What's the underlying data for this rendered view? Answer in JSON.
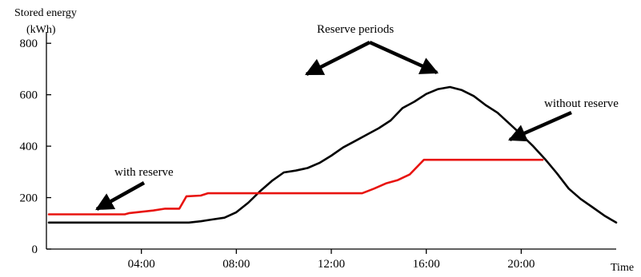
{
  "chart_data": {
    "type": "line",
    "ylabel_line1": "Stored energy",
    "ylabel_line2": "(kWh)",
    "xlabel": "Time",
    "xlim": [
      0,
      24
    ],
    "ylim": [
      0,
      900
    ],
    "x_ticks": [
      {
        "value": 4,
        "label": "04:00"
      },
      {
        "value": 8,
        "label": "08:00"
      },
      {
        "value": 12,
        "label": "12:00"
      },
      {
        "value": 16,
        "label": "16:00"
      },
      {
        "value": 20,
        "label": "20:00"
      }
    ],
    "y_ticks": [
      {
        "value": 0,
        "label": "0"
      },
      {
        "value": 200,
        "label": "200"
      },
      {
        "value": 400,
        "label": "400"
      },
      {
        "value": 600,
        "label": "600"
      },
      {
        "value": 800,
        "label": "800"
      }
    ],
    "grid": false,
    "series": [
      {
        "name": "without reserve",
        "color": "#000000",
        "points": [
          [
            0.1,
            103
          ],
          [
            2,
            103
          ],
          [
            4,
            103
          ],
          [
            6,
            103
          ],
          [
            6.5,
            108
          ],
          [
            7,
            115
          ],
          [
            7.5,
            122
          ],
          [
            8,
            143
          ],
          [
            8.5,
            180
          ],
          [
            9,
            225
          ],
          [
            9.5,
            265
          ],
          [
            10,
            298
          ],
          [
            10.5,
            305
          ],
          [
            11,
            315
          ],
          [
            11.5,
            335
          ],
          [
            12,
            363
          ],
          [
            12.5,
            395
          ],
          [
            13,
            420
          ],
          [
            13.5,
            445
          ],
          [
            14,
            470
          ],
          [
            14.5,
            500
          ],
          [
            15,
            548
          ],
          [
            15.5,
            573
          ],
          [
            16,
            603
          ],
          [
            16.5,
            622
          ],
          [
            17,
            630
          ],
          [
            17.5,
            618
          ],
          [
            18,
            595
          ],
          [
            18.5,
            560
          ],
          [
            19,
            530
          ],
          [
            19.5,
            488
          ],
          [
            20,
            445
          ],
          [
            20.5,
            400
          ],
          [
            21,
            350
          ],
          [
            21.5,
            295
          ],
          [
            22,
            235
          ],
          [
            22.5,
            195
          ],
          [
            23,
            163
          ],
          [
            23.5,
            130
          ],
          [
            24,
            103
          ]
        ]
      },
      {
        "name": "with reserve",
        "color": "#e8130f",
        "points": [
          [
            0.1,
            135
          ],
          [
            2.5,
            135
          ],
          [
            3.3,
            135
          ],
          [
            3.5,
            140
          ],
          [
            4,
            145
          ],
          [
            4.5,
            150
          ],
          [
            5,
            157
          ],
          [
            5.6,
            157
          ],
          [
            5.9,
            205
          ],
          [
            6.5,
            208
          ],
          [
            6.8,
            217
          ],
          [
            8,
            217
          ],
          [
            10,
            217
          ],
          [
            12,
            217
          ],
          [
            13.3,
            217
          ],
          [
            13.8,
            235
          ],
          [
            14.3,
            255
          ],
          [
            14.8,
            268
          ],
          [
            15.3,
            290
          ],
          [
            15.9,
            347
          ],
          [
            20.9,
            347
          ]
        ]
      }
    ],
    "annotations": {
      "reserve_periods": "Reserve periods",
      "with_reserve": "with reserve",
      "without_reserve": "without reserve"
    }
  }
}
